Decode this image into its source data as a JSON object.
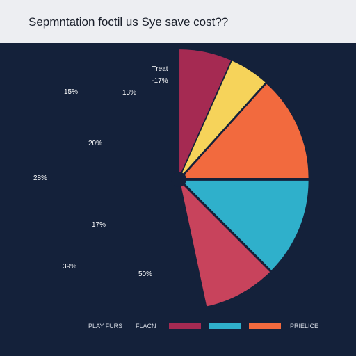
{
  "chart_data": {
    "type": "pie",
    "title": "Sepmntation foctil us Sye save cost??",
    "slices": [
      {
        "name": "Treat",
        "label": "-17%",
        "start_deg": -90,
        "end_deg": -66,
        "color": "#a52a52"
      },
      {
        "name": "",
        "label": "13%",
        "start_deg": -66,
        "end_deg": -48,
        "color": "#f6d35a"
      },
      {
        "name": "",
        "label": "20%",
        "start_deg": -48,
        "end_deg": 0,
        "color": "#f26a3e"
      },
      {
        "name": "",
        "label": "17%",
        "start_deg": 0,
        "end_deg": 45,
        "color": "#2fb0cb"
      },
      {
        "name": "",
        "label": "50%",
        "start_deg": 45,
        "end_deg": 78,
        "color": "#c8435c"
      }
    ],
    "outer_labels": [
      "15%",
      "28%",
      "39%"
    ],
    "legend": {
      "left_text": "PLAY FURS",
      "items": [
        {
          "name": "FLACN",
          "color": "#a52a52"
        },
        {
          "name": "",
          "color": "#2fb0cb"
        },
        {
          "name": "",
          "color": "#f26a3e"
        }
      ],
      "right_text": "PRIELICE"
    },
    "center_dot_color": "#14213a"
  }
}
